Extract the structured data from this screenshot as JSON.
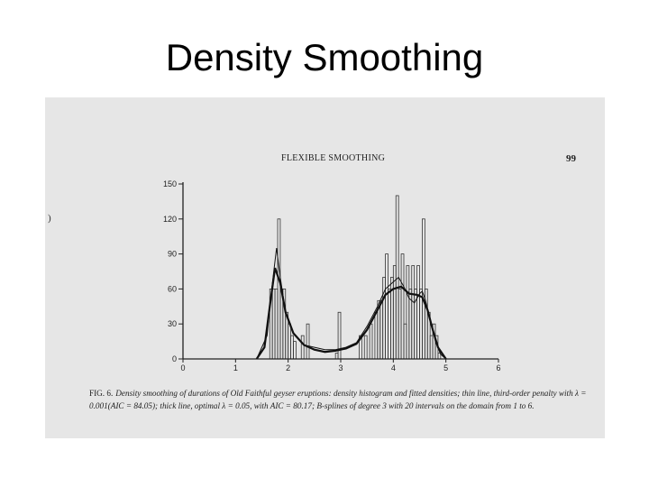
{
  "slide": {
    "title": "Density Smoothing"
  },
  "page": {
    "running_head": "FLEXIBLE SMOOTHING",
    "page_number": "99",
    "stray_mark": ")"
  },
  "caption": {
    "label": "FIG. 6.",
    "text": "Density smoothing of durations of Old Faithful geyser eruptions: density histogram and fitted densities; thin line, third-order penalty with λ = 0.001(AIC = 84.05); thick line, optimal λ = 0.05, with AIC = 80.17; B-splines of degree 3 with 20 intervals on the domain from 1 to 6."
  },
  "chart_data": {
    "type": "bar",
    "title": "",
    "xlabel": "",
    "ylabel": "",
    "xlim": [
      0,
      6
    ],
    "ylim": [
      0,
      150
    ],
    "x_ticks": [
      "0",
      "1",
      "2",
      "3",
      "4",
      "5",
      "6"
    ],
    "y_ticks": [
      "0",
      "30",
      "60",
      "90",
      "120",
      "150"
    ],
    "histogram": {
      "bin_width": 0.05,
      "bins": [
        {
          "x": 1.65,
          "y": 60
        },
        {
          "x": 1.7,
          "y": 60
        },
        {
          "x": 1.75,
          "y": 60
        },
        {
          "x": 1.8,
          "y": 120
        },
        {
          "x": 1.85,
          "y": 60
        },
        {
          "x": 1.9,
          "y": 60
        },
        {
          "x": 1.95,
          "y": 40
        },
        {
          "x": 2.0,
          "y": 30
        },
        {
          "x": 2.05,
          "y": 20
        },
        {
          "x": 2.1,
          "y": 15
        },
        {
          "x": 2.25,
          "y": 20
        },
        {
          "x": 2.35,
          "y": 30
        },
        {
          "x": 2.9,
          "y": 5
        },
        {
          "x": 2.95,
          "y": 40
        },
        {
          "x": 3.35,
          "y": 20
        },
        {
          "x": 3.45,
          "y": 20
        },
        {
          "x": 3.55,
          "y": 30
        },
        {
          "x": 3.65,
          "y": 40
        },
        {
          "x": 3.7,
          "y": 50
        },
        {
          "x": 3.75,
          "y": 50
        },
        {
          "x": 3.8,
          "y": 70
        },
        {
          "x": 3.85,
          "y": 90
        },
        {
          "x": 3.9,
          "y": 60
        },
        {
          "x": 3.95,
          "y": 70
        },
        {
          "x": 4.0,
          "y": 80
        },
        {
          "x": 4.05,
          "y": 140
        },
        {
          "x": 4.1,
          "y": 60
        },
        {
          "x": 4.15,
          "y": 90
        },
        {
          "x": 4.2,
          "y": 30
        },
        {
          "x": 4.25,
          "y": 80
        },
        {
          "x": 4.3,
          "y": 60
        },
        {
          "x": 4.35,
          "y": 80
        },
        {
          "x": 4.4,
          "y": 60
        },
        {
          "x": 4.45,
          "y": 80
        },
        {
          "x": 4.5,
          "y": 60
        },
        {
          "x": 4.55,
          "y": 120
        },
        {
          "x": 4.6,
          "y": 60
        },
        {
          "x": 4.65,
          "y": 40
        },
        {
          "x": 4.7,
          "y": 20
        },
        {
          "x": 4.75,
          "y": 30
        },
        {
          "x": 4.8,
          "y": 20
        },
        {
          "x": 4.85,
          "y": 5
        }
      ]
    },
    "series": [
      {
        "name": "thin line",
        "x": [
          1.4,
          1.6,
          1.7,
          1.78,
          1.85,
          1.95,
          2.1,
          2.3,
          2.5,
          2.7,
          2.9,
          3.1,
          3.3,
          3.5,
          3.7,
          3.85,
          4.0,
          4.1,
          4.2,
          4.3,
          4.4,
          4.5,
          4.55,
          4.6,
          4.7,
          4.8,
          4.9,
          5.0
        ],
        "y": [
          0,
          20,
          65,
          95,
          70,
          40,
          22,
          12,
          10,
          8,
          8,
          10,
          14,
          28,
          45,
          60,
          66,
          70,
          62,
          52,
          48,
          56,
          58,
          52,
          35,
          15,
          4,
          0
        ]
      },
      {
        "name": "thick line",
        "x": [
          1.4,
          1.55,
          1.65,
          1.75,
          1.85,
          1.95,
          2.1,
          2.3,
          2.5,
          2.7,
          2.9,
          3.1,
          3.3,
          3.5,
          3.7,
          3.85,
          4.0,
          4.15,
          4.3,
          4.45,
          4.55,
          4.65,
          4.75,
          4.85,
          5.0
        ],
        "y": [
          0,
          10,
          45,
          78,
          65,
          40,
          22,
          12,
          8,
          6,
          7,
          9,
          13,
          25,
          42,
          55,
          60,
          62,
          56,
          55,
          53,
          42,
          25,
          10,
          0
        ]
      }
    ]
  }
}
